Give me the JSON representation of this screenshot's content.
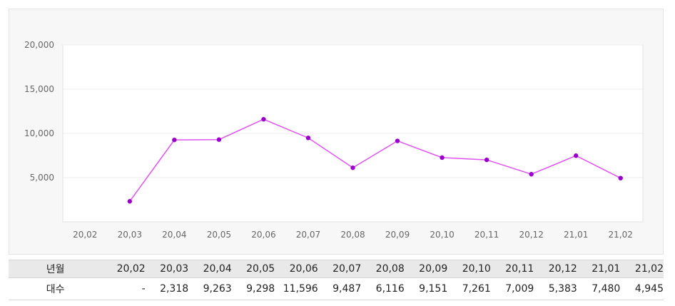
{
  "chart_data": {
    "type": "line",
    "categories": [
      "20,02",
      "20,03",
      "20,04",
      "20,05",
      "20,06",
      "20,07",
      "20,08",
      "20,09",
      "20,10",
      "20,11",
      "20,12",
      "21,01",
      "21,02"
    ],
    "series": [
      {
        "values": [
          null,
          2318,
          9263,
          9298,
          11596,
          9487,
          6116,
          9151,
          7261,
          7009,
          5383,
          7480,
          4945
        ],
        "color": "#dd55ee",
        "marker_color": "#9900cc"
      }
    ],
    "y_ticks": [
      "5,000",
      "10,000",
      "15,000",
      "20,000"
    ],
    "ylim": [
      0,
      20000
    ],
    "grid": true
  },
  "table": {
    "header_label": "년월",
    "value_label": "대수",
    "months": [
      "20,02",
      "20,03",
      "20,04",
      "20,05",
      "20,06",
      "20,07",
      "20,08",
      "20,09",
      "20,10",
      "20,11",
      "20,12",
      "21,01",
      "21,02"
    ],
    "counts": [
      "-",
      "2,318",
      "9,263",
      "9,298",
      "11,596",
      "9,487",
      "6,116",
      "9,151",
      "7,261",
      "7,009",
      "5,383",
      "7,480",
      "4,945"
    ]
  }
}
